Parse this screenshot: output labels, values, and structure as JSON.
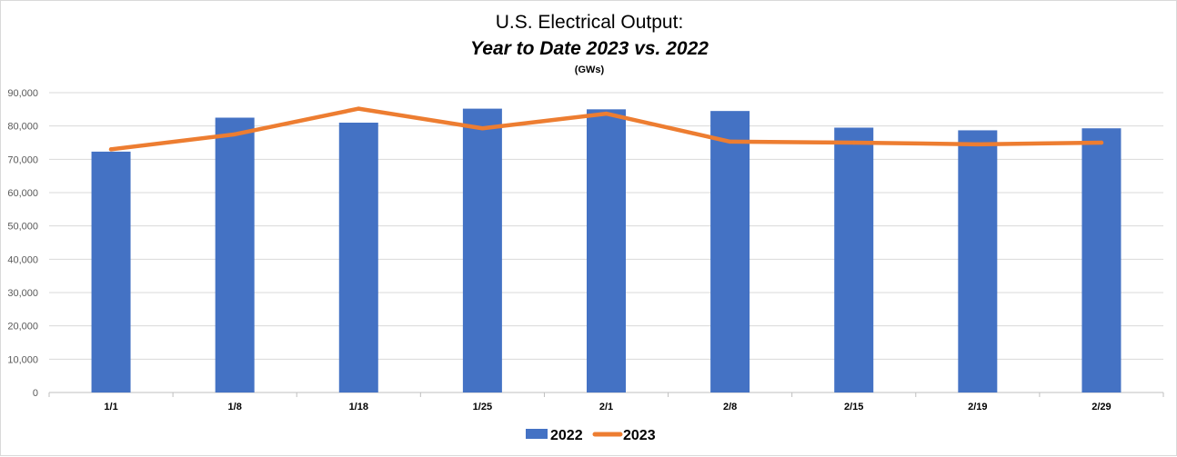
{
  "chart_data": {
    "type": "bar",
    "title": "U.S. Electrical Output:",
    "subtitle": "Year to Date 2023 vs. 2022",
    "unit_label": "(GWs)",
    "categories": [
      "1/1",
      "1/8",
      "1/18",
      "1/25",
      "2/1",
      "2/8",
      "2/15",
      "2/19",
      "2/29"
    ],
    "series": [
      {
        "name": "2022",
        "type": "bar",
        "color": "#4472C4",
        "values": [
          72300,
          82500,
          81000,
          85200,
          85000,
          84500,
          79500,
          78700,
          79300
        ]
      },
      {
        "name": "2023",
        "type": "line",
        "color": "#ED7D31",
        "values": [
          73000,
          77500,
          85200,
          79300,
          83700,
          75300,
          75000,
          74500,
          75000
        ]
      }
    ],
    "ylim": [
      0,
      90000
    ],
    "yticks": [
      0,
      10000,
      20000,
      30000,
      40000,
      50000,
      60000,
      70000,
      80000,
      90000
    ],
    "ytick_labels": [
      "0",
      "10,000",
      "20,000",
      "30,000",
      "40,000",
      "50,000",
      "60,000",
      "70,000",
      "80,000",
      "90,000"
    ],
    "grid": true,
    "legend": "bottom-center"
  }
}
